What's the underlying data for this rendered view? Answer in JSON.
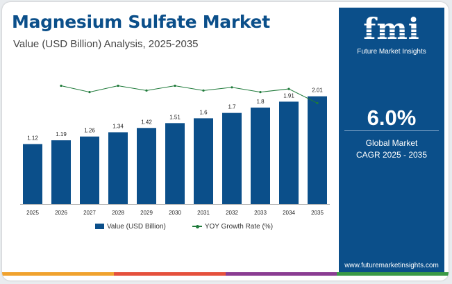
{
  "header": {
    "title": "Magnesium Sulfate Market",
    "subtitle": "Value (USD Billion) Analysis, 2025-2035"
  },
  "sidebar": {
    "logo_word": "fmi",
    "logo_text": "Future Market Insights",
    "cagr_value": "6.0%",
    "cagr_label_line1": "Global Market",
    "cagr_label_line2": "CAGR 2025 - 2035",
    "url": "www.futuremarketinsights.com"
  },
  "colors": {
    "bar": "#0b4f8a",
    "line": "#1f7a3a",
    "sidebar": "#0b4f8a",
    "strip": [
      "#f0a22e",
      "#e5503c",
      "#8a3c92",
      "#3a9a46"
    ]
  },
  "chart_data": {
    "type": "bar",
    "categories": [
      "2025",
      "2026",
      "2027",
      "2028",
      "2029",
      "2030",
      "2031",
      "2032",
      "2033",
      "2034",
      "2035"
    ],
    "series": [
      {
        "name": "Value (USD Billion)",
        "type": "bar",
        "values": [
          1.12,
          1.19,
          1.26,
          1.34,
          1.42,
          1.51,
          1.6,
          1.7,
          1.8,
          1.91,
          2.01
        ],
        "labels": [
          "1.12",
          "1.19",
          "1.26",
          "1.34",
          "1.42",
          "1.51",
          "1.6",
          "1.7",
          "1.8",
          "1.91",
          "2.01"
        ]
      },
      {
        "name": "YOY Growth Rate (%)",
        "type": "line",
        "values": [
          null,
          6.3,
          5.9,
          6.3,
          6.0,
          6.3,
          6.0,
          6.2,
          5.9,
          6.1,
          5.2
        ]
      }
    ],
    "ylim": [
      0,
      2.2
    ],
    "grid": false,
    "legend_position": "bottom"
  }
}
